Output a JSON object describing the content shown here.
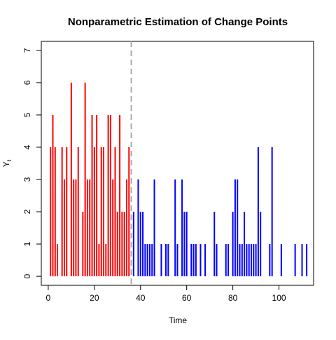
{
  "chart_data": {
    "type": "bar",
    "title": "Nonparametric Estimation of Change Points",
    "xlabel": "Time",
    "ylabel_main": "Y",
    "ylabel_sub": "t",
    "xlim": [
      -3,
      115
    ],
    "ylim": [
      -0.28,
      7.28
    ],
    "xticks": [
      0,
      20,
      40,
      60,
      80,
      100
    ],
    "yticks": [
      0,
      1,
      2,
      3,
      4,
      5,
      6,
      7
    ],
    "change_point": 36,
    "series": [
      {
        "color": "#ff0000",
        "x": [
          1,
          2,
          3,
          4,
          5,
          6,
          7,
          8,
          9,
          10,
          11,
          12,
          13,
          14,
          15,
          16,
          17,
          18,
          19,
          20,
          21,
          22,
          23,
          24,
          25,
          26,
          27,
          28,
          29,
          30,
          31,
          32,
          33,
          34,
          35,
          36
        ],
        "values": [
          4,
          5,
          4,
          1,
          0,
          4,
          3,
          4,
          0,
          6,
          3,
          3,
          4,
          0,
          2,
          6,
          3,
          3,
          5,
          4,
          5,
          1,
          4,
          4,
          1,
          5,
          5,
          3,
          4,
          2,
          5,
          2,
          2,
          3,
          4,
          0
        ]
      },
      {
        "color": "#0000ff",
        "x": [
          37,
          38,
          39,
          40,
          41,
          42,
          43,
          44,
          45,
          46,
          47,
          48,
          49,
          50,
          51,
          52,
          53,
          54,
          55,
          56,
          57,
          58,
          59,
          60,
          61,
          62,
          63,
          64,
          65,
          66,
          67,
          68,
          69,
          70,
          71,
          72,
          73,
          74,
          75,
          76,
          77,
          78,
          79,
          80,
          81,
          82,
          83,
          84,
          85,
          86,
          87,
          88,
          89,
          90,
          91,
          92,
          93,
          94,
          95,
          96,
          97,
          98,
          99,
          100,
          101,
          102,
          103,
          104,
          105,
          106,
          107,
          108,
          109,
          110,
          111,
          112
        ],
        "values": [
          2,
          0,
          3,
          2,
          2,
          1,
          1,
          1,
          1,
          3,
          0,
          0,
          1,
          0,
          1,
          1,
          0,
          0,
          3,
          1,
          0,
          3,
          2,
          2,
          0,
          1,
          1,
          1,
          0,
          1,
          0,
          1,
          0,
          0,
          0,
          2,
          1,
          0,
          0,
          0,
          1,
          1,
          0,
          2,
          3,
          3,
          1,
          1,
          2,
          1,
          1,
          1,
          1,
          1,
          4,
          2,
          0,
          0,
          0,
          1,
          4,
          0,
          0,
          0,
          1,
          0,
          0,
          0,
          0,
          0,
          1,
          0,
          0,
          1,
          0,
          1
        ]
      }
    ]
  }
}
